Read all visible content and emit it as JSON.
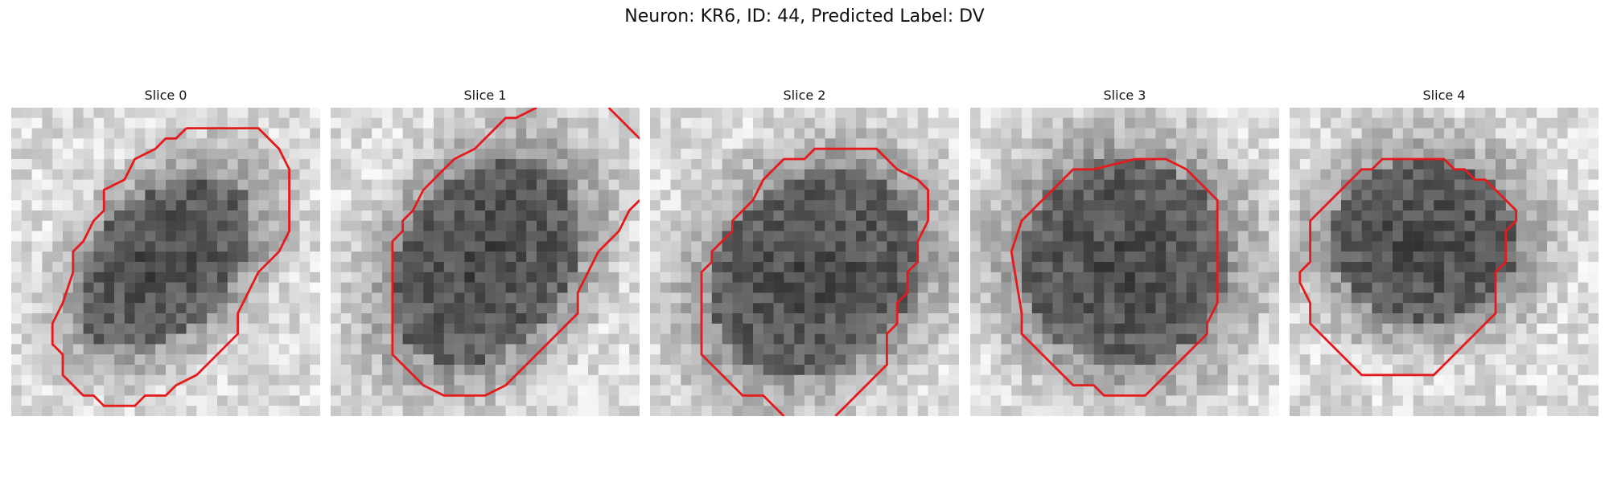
{
  "figure": {
    "title": "Neuron: KR6, ID: 44, Predicted Label: DV"
  },
  "colors": {
    "contour": "#e41a1c",
    "background": "#ffffff"
  },
  "panels": [
    {
      "title": "Slice 0",
      "mask_color": "#e41a1c"
    },
    {
      "title": "Slice 1",
      "mask_color": "#e41a1c"
    },
    {
      "title": "Slice 2",
      "mask_color": "#e41a1c"
    },
    {
      "title": "Slice 3",
      "mask_color": "#e41a1c"
    },
    {
      "title": "Slice 4",
      "mask_color": "#e41a1c"
    }
  ]
}
